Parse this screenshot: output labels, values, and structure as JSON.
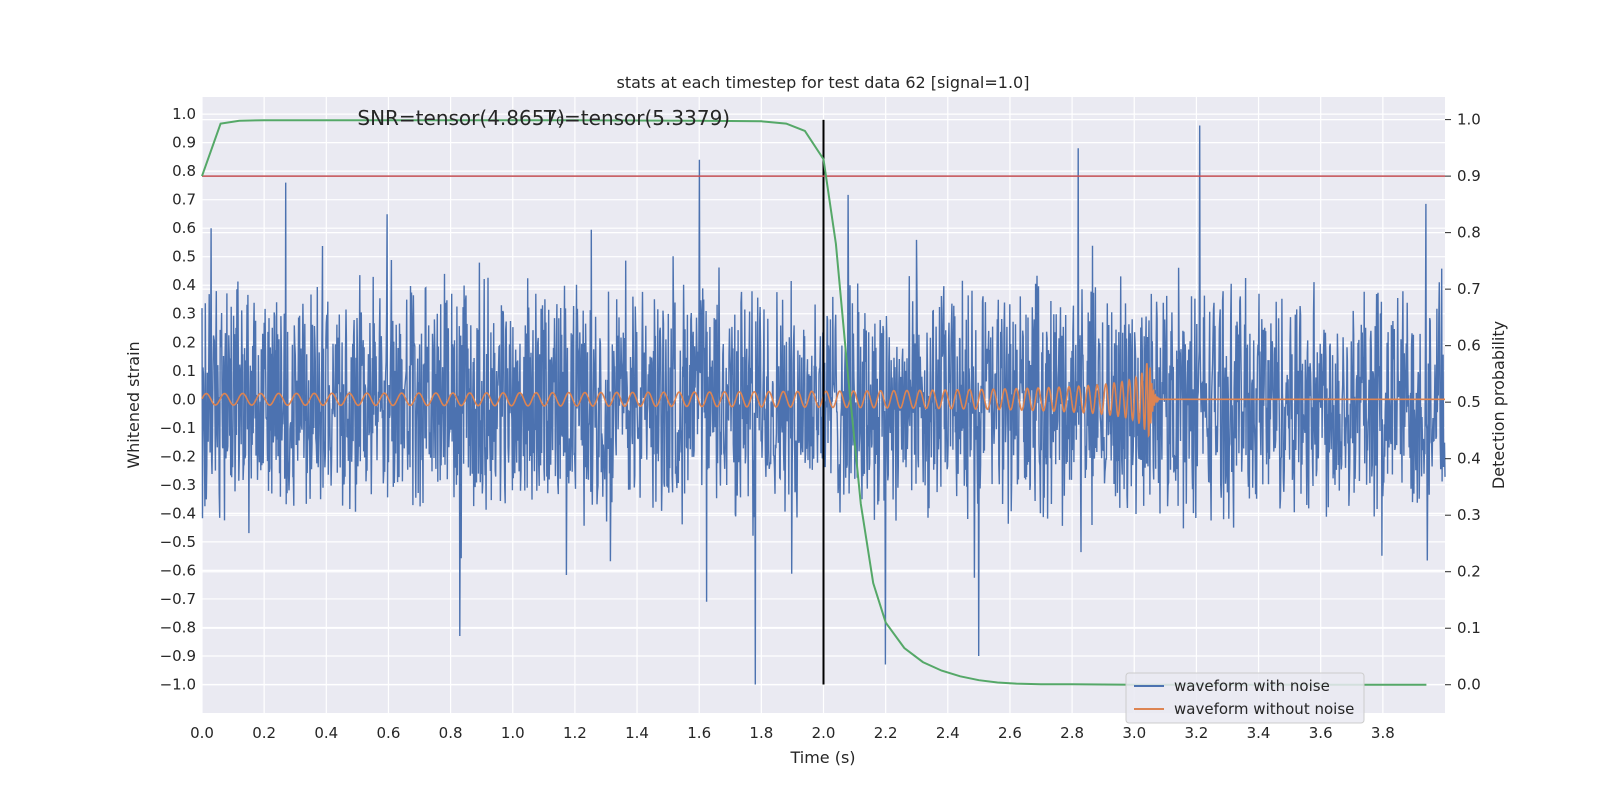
{
  "chart_data": {
    "type": "line",
    "title": "stats at each timestep for test data 62 [signal=1.0]",
    "xlabel": "Time (s)",
    "ylabel": "Whitened strain",
    "y2label": "Detection probability",
    "xlim": [
      0.0,
      4.0
    ],
    "ylim": [
      -1.1,
      1.06
    ],
    "y2lim": [
      -0.05,
      1.04
    ],
    "xticks": [
      "0.0",
      "0.2",
      "0.4",
      "0.6",
      "0.8",
      "1.0",
      "1.2",
      "1.4",
      "1.6",
      "1.8",
      "2.0",
      "2.2",
      "2.4",
      "2.6",
      "2.8",
      "3.0",
      "3.2",
      "3.4",
      "3.6",
      "3.8"
    ],
    "yticks": [
      "1.0",
      "0.9",
      "0.8",
      "0.7",
      "0.6",
      "0.5",
      "0.4",
      "0.3",
      "0.2",
      "0.1",
      "0.0",
      "−0.1",
      "−0.2",
      "−0.3",
      "−0.4",
      "−0.5",
      "−0.6",
      "−0.7",
      "−0.8",
      "−0.9",
      "−1.0"
    ],
    "y2ticks": [
      "1.0",
      "0.9",
      "0.8",
      "0.7",
      "0.6",
      "0.5",
      "0.4",
      "0.3",
      "0.2",
      "0.1",
      "0.0"
    ],
    "annotations": [
      {
        "text": "SNR=tensor(4.8657)",
        "x": 0.5,
        "y": 0.99
      },
      {
        "text": "T₀=tensor(5.3379)",
        "x": 1.1,
        "y": 0.99
      }
    ],
    "grid": true,
    "legend_position": "lower-right",
    "series": [
      {
        "name": "waveform with noise",
        "color": "#4c72b0",
        "axis": "left",
        "description": "dense noise fluctuating roughly between -0.55 and 0.55 with spikes to about +/-0.95",
        "amplitude": 0.42,
        "spikes": [
          {
            "x": 1.6,
            "y": 0.84
          },
          {
            "x": 1.78,
            "y": -1.0
          },
          {
            "x": 2.82,
            "y": 0.88
          },
          {
            "x": 3.21,
            "y": 0.96
          },
          {
            "x": 2.2,
            "y": -0.93
          },
          {
            "x": 2.5,
            "y": -0.9
          },
          {
            "x": 0.83,
            "y": -0.83
          },
          {
            "x": 0.27,
            "y": 0.76
          },
          {
            "x": 0.03,
            "y": 0.6
          }
        ]
      },
      {
        "name": "waveform without noise",
        "color": "#dd8452",
        "axis": "left",
        "description": "chirp oscillation with growing amplitude and frequency, merger near t=3.05 s",
        "merger_time": 3.05,
        "amplitude_start": 0.02,
        "amplitude_peak": 0.13
      },
      {
        "name": "",
        "color": "#55a868",
        "axis": "right",
        "x": [
          0.0,
          0.06,
          0.12,
          0.2,
          0.4,
          0.8,
          1.2,
          1.6,
          1.8,
          1.88,
          1.94,
          2.0,
          2.04,
          2.08,
          2.12,
          2.16,
          2.2,
          2.26,
          2.32,
          2.38,
          2.44,
          2.5,
          2.56,
          2.62,
          2.7,
          2.8,
          3.0,
          3.5,
          3.94
        ],
        "y": [
          0.9,
          0.993,
          0.998,
          0.999,
          0.999,
          0.999,
          0.999,
          0.998,
          0.997,
          0.993,
          0.98,
          0.93,
          0.78,
          0.54,
          0.32,
          0.18,
          0.11,
          0.065,
          0.04,
          0.025,
          0.015,
          0.008,
          0.004,
          0.002,
          0.001,
          0.001,
          0.0,
          0.0,
          0.0
        ]
      }
    ],
    "reference_lines": [
      {
        "type": "vertical",
        "x": 2.0,
        "ymin": -1.0,
        "ymax": 0.98,
        "color": "#000000"
      },
      {
        "type": "horizontal",
        "axis": "right",
        "y": 0.9,
        "color": "#c44e52"
      }
    ],
    "legend": {
      "entries": [
        {
          "label": "waveform with noise",
          "color": "#4c72b0"
        },
        {
          "label": "waveform without noise",
          "color": "#dd8452"
        }
      ]
    }
  }
}
